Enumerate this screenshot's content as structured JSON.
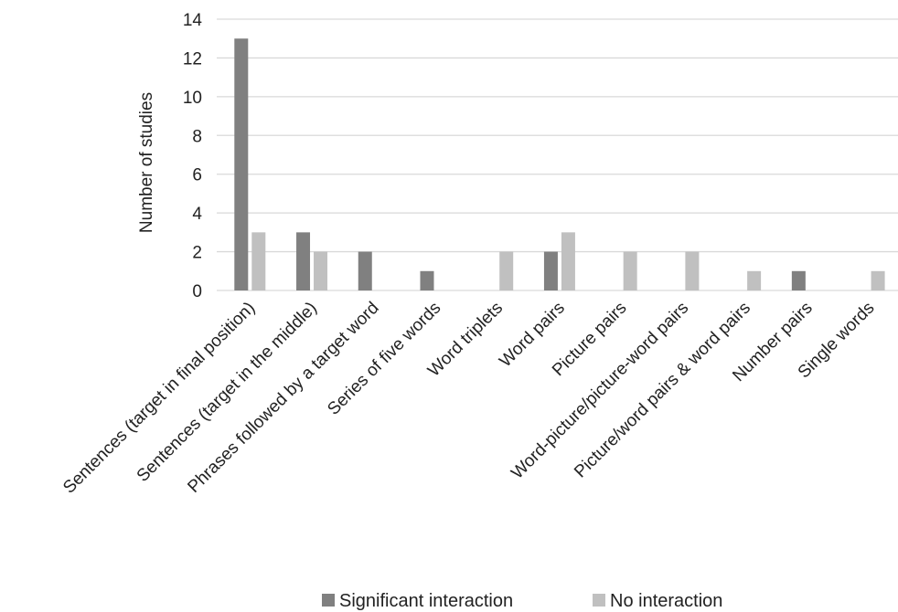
{
  "chart_data": {
    "type": "bar",
    "title": "",
    "xlabel": "",
    "ylabel": "Number of studies",
    "ylim": [
      0,
      14
    ],
    "yticks": [
      0,
      2,
      4,
      6,
      8,
      10,
      12,
      14
    ],
    "grid": true,
    "legend_position": "bottom",
    "categories": [
      "Sentences (target in final position)",
      "Sentences (target in the middle)",
      "Phrases followed by a target word",
      "Series of five words",
      "Word triplets",
      "Word pairs",
      "Picture pairs",
      "Word-picture/picture-word pairs",
      "Picture/word pairs & word pairs",
      "Number pairs",
      "Single words"
    ],
    "series": [
      {
        "name": "Significant interaction",
        "color": "#808080",
        "values": [
          13,
          3,
          2,
          1,
          0,
          2,
          0,
          0,
          0,
          1,
          0
        ]
      },
      {
        "name": "No interaction",
        "color": "#c0c0c0",
        "values": [
          3,
          2,
          0,
          0,
          2,
          3,
          2,
          2,
          1,
          0,
          1
        ]
      }
    ]
  }
}
